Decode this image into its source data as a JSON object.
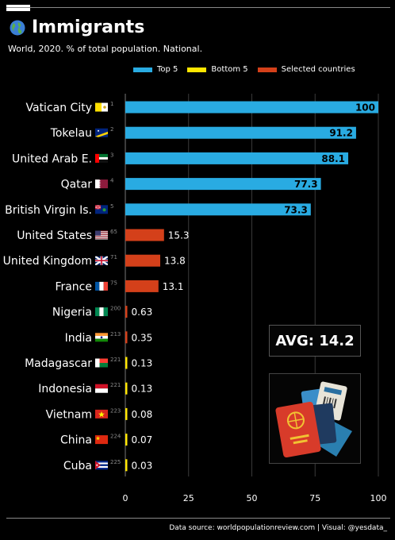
{
  "header": {
    "title": "Immigrants",
    "subtitle": "World, 2020. % of total population. National."
  },
  "legend": [
    {
      "label": "Top 5",
      "color": "#29ABE2"
    },
    {
      "label": "Bottom 5",
      "color": "#FFE600"
    },
    {
      "label": "Selected countries",
      "color": "#D4401A"
    }
  ],
  "avg_label": "AVG: 14.2",
  "source": "Data source: worldpopulationreview.com | Visual: @yesdata_",
  "chart_data": {
    "type": "bar",
    "orientation": "horizontal",
    "title": "Immigrants",
    "subtitle": "World, 2020. % of total population. National.",
    "xlim": [
      0,
      100
    ],
    "xticks": [
      0,
      25,
      50,
      75,
      100
    ],
    "grid": true,
    "legend_position": "top",
    "categories": [
      "Vatican City",
      "Tokelau",
      "United Arab E.",
      "Qatar",
      "British Virgin Is.",
      "United States",
      "United Kingdom",
      "France",
      "Nigeria",
      "India",
      "Madagascar",
      "Indonesia",
      "Vietnam",
      "China",
      "Cuba"
    ],
    "ranks": [
      "1",
      "2",
      "3",
      "4",
      "5",
      "65",
      "71",
      "75",
      "200",
      "213",
      "221",
      "221",
      "223",
      "224",
      "225"
    ],
    "values": [
      100,
      91.2,
      88.1,
      77.3,
      73.3,
      15.3,
      13.8,
      13.1,
      0.63,
      0.35,
      0.13,
      0.13,
      0.08,
      0.07,
      0.03
    ],
    "value_labels": [
      "100",
      "91.2",
      "88.1",
      "77.3",
      "73.3",
      "15.3",
      "13.8",
      "13.1",
      "0.63",
      "0.35",
      "0.13",
      "0.13",
      "0.08",
      "0.07",
      "0.03"
    ],
    "groups": [
      "Top 5",
      "Top 5",
      "Top 5",
      "Top 5",
      "Top 5",
      "Selected countries",
      "Selected countries",
      "Selected countries",
      "Selected countries",
      "Selected countries",
      "Bottom 5",
      "Bottom 5",
      "Bottom 5",
      "Bottom 5",
      "Bottom 5"
    ],
    "flags": [
      "vatican",
      "tokelau",
      "uae",
      "qatar",
      "bvi",
      "usa",
      "uk",
      "france",
      "nigeria",
      "india",
      "madagascar",
      "indonesia",
      "vietnam",
      "china",
      "cuba"
    ]
  }
}
